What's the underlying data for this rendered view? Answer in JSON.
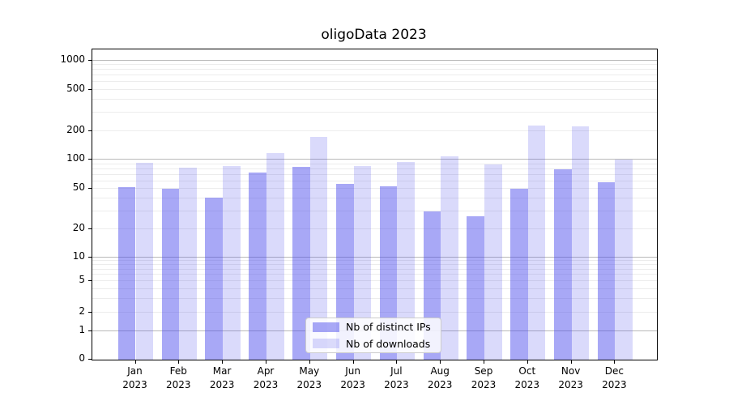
{
  "chart_data": {
    "type": "bar",
    "title": "oligoData 2023",
    "year": "2023",
    "categories": [
      "Jan",
      "Feb",
      "Mar",
      "Apr",
      "May",
      "Jun",
      "Jul",
      "Aug",
      "Sep",
      "Oct",
      "Nov",
      "Dec"
    ],
    "series": [
      {
        "name": "Nb of distinct IPs",
        "color": "rgba(70,70,235,0.47)",
        "values": [
          52,
          50,
          41,
          74,
          84,
          56,
          53,
          30,
          27,
          50,
          79,
          58
        ]
      },
      {
        "name": "Nb of downloads",
        "color": "rgba(70,70,235,0.20)",
        "values": [
          92,
          83,
          86,
          118,
          173,
          85,
          94,
          108,
          90,
          226,
          221,
          101
        ]
      }
    ],
    "yscale": "symlog",
    "ylim": [
      0,
      1300
    ],
    "y_ticks": [
      0,
      1,
      2,
      5,
      10,
      20,
      50,
      100,
      200,
      500,
      1000
    ],
    "y_tick_labels": [
      "0",
      "1",
      "2",
      "5",
      "10",
      "20",
      "50",
      "100",
      "200",
      "500",
      "1000"
    ],
    "xlabel": "",
    "ylabel": "",
    "grid": true,
    "legend_position": "lower center",
    "colors": {
      "bar_ips": "rgba(70,70,235,0.47)",
      "bar_downloads": "rgba(70,70,235,0.20)",
      "major_grid": "#b9b9b9",
      "minor_grid": "#ececec",
      "spine": "#000000"
    }
  }
}
